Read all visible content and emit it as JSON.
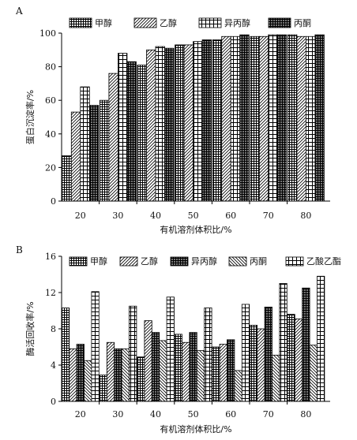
{
  "chart_data": [
    {
      "panel_label": "A",
      "type": "bar",
      "xlabel": "有机溶剂体积比/%",
      "ylabel": "蛋白沉淀率/%",
      "ylim": [
        0,
        100
      ],
      "yticks": [
        0,
        20,
        40,
        60,
        80,
        100
      ],
      "grid": false,
      "legend_position": "top",
      "categories": [
        "20",
        "30",
        "40",
        "50",
        "60",
        "70",
        "80"
      ],
      "series": [
        {
          "name": "甲醇",
          "pattern": "grid",
          "values": [
            27,
            60,
            81,
            93,
            96,
            98,
            99
          ]
        },
        {
          "name": "乙醇",
          "pattern": "diagonal",
          "values": [
            53,
            76,
            90,
            93,
            98,
            98,
            98
          ]
        },
        {
          "name": "异丙醇",
          "pattern": "squares",
          "values": [
            68,
            88,
            92,
            95,
            98,
            99,
            98
          ]
        },
        {
          "name": "丙酮",
          "pattern": "dense",
          "values": [
            57,
            83,
            91,
            96,
            99,
            99,
            99
          ]
        }
      ]
    },
    {
      "panel_label": "B",
      "type": "bar",
      "xlabel": "有机溶剂体积比/%",
      "ylabel": "酶活回收率/%",
      "ylim": [
        0,
        16
      ],
      "yticks": [
        0,
        4,
        8,
        12,
        16
      ],
      "grid": false,
      "legend_position": "top",
      "categories": [
        "20",
        "30",
        "40",
        "50",
        "60",
        "70",
        "80"
      ],
      "series": [
        {
          "name": "甲醇",
          "pattern": "grid",
          "values": [
            10.3,
            2.9,
            4.9,
            7.4,
            6.0,
            8.4,
            9.6
          ]
        },
        {
          "name": "乙醇",
          "pattern": "diagonal",
          "values": [
            5.8,
            6.5,
            8.9,
            6.5,
            6.3,
            8.0,
            9.1
          ]
        },
        {
          "name": "异丙醇",
          "pattern": "dense",
          "values": [
            6.3,
            5.8,
            7.6,
            7.6,
            6.8,
            10.4,
            12.5
          ]
        },
        {
          "name": "丙酮",
          "pattern": "backdiag",
          "values": [
            4.5,
            5.8,
            6.7,
            5.6,
            3.4,
            5.1,
            6.2
          ]
        },
        {
          "name": "乙酸乙酯",
          "pattern": "squares",
          "values": [
            12.1,
            10.5,
            11.5,
            10.3,
            10.7,
            13.0,
            13.8
          ]
        }
      ]
    }
  ]
}
